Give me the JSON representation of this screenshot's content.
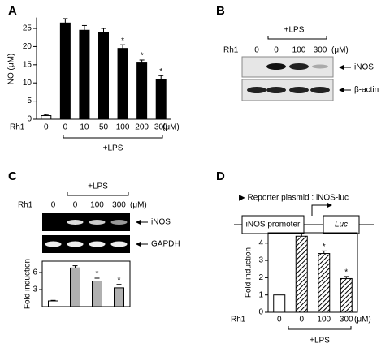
{
  "chart_data": [
    {
      "type": "bar",
      "panel": "A",
      "ylabel": "NO (μM)",
      "row_label": "Rh1",
      "unit": "(μM)",
      "group_label": "+LPS",
      "categories": [
        "0",
        "0",
        "10",
        "50",
        "100",
        "200",
        "300"
      ],
      "values": [
        1,
        26.5,
        24.5,
        24,
        19.5,
        15.5,
        11
      ],
      "errors": [
        0.3,
        1.2,
        1.3,
        1,
        1,
        0.8,
        1
      ],
      "colors": [
        "#ffffff",
        "#000000",
        "#000000",
        "#000000",
        "#000000",
        "#000000",
        "#000000"
      ],
      "markers": [
        null,
        null,
        null,
        null,
        "*",
        "*",
        "*"
      ],
      "ylim": [
        0,
        28
      ],
      "yticks": [
        0,
        5,
        10,
        15,
        20,
        25
      ]
    },
    {
      "type": "bar",
      "panel": "C",
      "ylabel": "Fold induction",
      "row_label": "Rh1",
      "unit": "(μM)",
      "group_label": "+LPS",
      "gel_bands": [
        "iNOS",
        "GAPDH"
      ],
      "categories": [
        "0",
        "0",
        "100",
        "300"
      ],
      "values": [
        1,
        6.8,
        4.5,
        3.3
      ],
      "errors": [
        0.1,
        0.4,
        0.5,
        0.6
      ],
      "colors": [
        "#ffffff",
        "#b0b0b0",
        "#b0b0b0",
        "#b0b0b0"
      ],
      "markers": [
        null,
        null,
        "*",
        "*"
      ],
      "ylim": [
        0,
        8
      ],
      "yticks": [
        3,
        6
      ]
    },
    {
      "type": "bar",
      "panel": "D",
      "ylabel": "Fold induction",
      "row_label": "Rh1",
      "unit": "(μM)",
      "group_label": "+LPS",
      "categories": [
        "0",
        "0",
        "100",
        "300"
      ],
      "values": [
        1,
        4.4,
        3.4,
        1.95
      ],
      "errors": [
        0,
        0.15,
        0.15,
        0.12
      ],
      "colors": [
        "#ffffff",
        "#000000",
        "#000000",
        "#000000"
      ],
      "hatched": [
        false,
        true,
        true,
        true
      ],
      "markers": [
        null,
        null,
        "*",
        "*"
      ],
      "ylim": [
        0,
        4.6
      ],
      "yticks": [
        0,
        1,
        2,
        3,
        4
      ]
    }
  ],
  "blot_b": {
    "panel": "B",
    "group_label": "+LPS",
    "row_label": "Rh1",
    "lanes": [
      "0",
      "0",
      "100",
      "300"
    ],
    "unit": "(μM)",
    "bands": [
      "iNOS",
      "β-actin"
    ]
  },
  "construct_d": {
    "title": "▶ Reporter plasmid : iNOS-luc",
    "promoter": "iNOS promoter",
    "gene": "Luc"
  }
}
